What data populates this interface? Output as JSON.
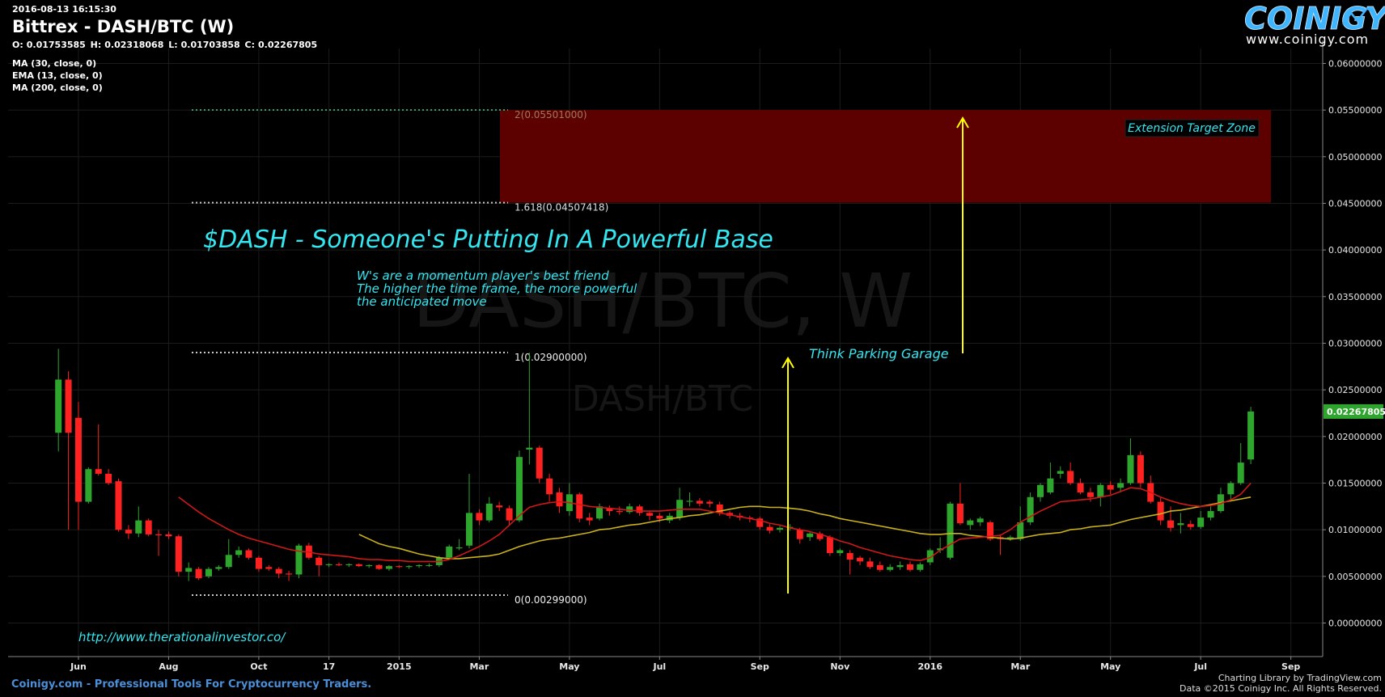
{
  "chart_data": {
    "type": "candlestick",
    "timestamp": "2016-08-13 16:15:30",
    "title": "Bittrex - DASH/BTC (W)",
    "ohlc_labels": [
      "O:",
      "H:",
      "L:",
      "C:"
    ],
    "watermark": "DASH/BTC, W",
    "watermark_sub": "DASH/BTC",
    "up_color": "#2ea62e",
    "down_color": "#ff2020",
    "grid": true,
    "ylim": [
      -0.0036,
      0.0616
    ],
    "yticks": [
      {
        "value": 0,
        "label": "0.00000000"
      },
      {
        "value": 0.005,
        "label": "0.00500000"
      },
      {
        "value": 0.01,
        "label": "0.01000000"
      },
      {
        "value": 0.015,
        "label": "0.01500000"
      },
      {
        "value": 0.02,
        "label": "0.02000000"
      },
      {
        "value": 0.025,
        "label": "0.02500000"
      },
      {
        "value": 0.03,
        "label": "0.03000000"
      },
      {
        "value": 0.035,
        "label": "0.03500000"
      },
      {
        "value": 0.04,
        "label": "0.04000000"
      },
      {
        "value": 0.045,
        "label": "0.04500000"
      },
      {
        "value": 0.05,
        "label": "0.05000000"
      },
      {
        "value": 0.055,
        "label": "0.05500000"
      },
      {
        "value": 0.06,
        "label": "0.06000000"
      }
    ],
    "categories": [
      null,
      null,
      "Jun",
      null,
      null,
      null,
      null,
      null,
      null,
      null,
      null,
      "Aug",
      null,
      null,
      null,
      null,
      null,
      null,
      null,
      null,
      "Oct",
      null,
      null,
      null,
      null,
      null,
      null,
      "17",
      null,
      null,
      null,
      null,
      null,
      null,
      "2015",
      null,
      null,
      null,
      null,
      null,
      null,
      null,
      "Mar",
      null,
      null,
      null,
      null,
      null,
      null,
      null,
      null,
      "May",
      null,
      null,
      null,
      null,
      null,
      null,
      null,
      null,
      "Jul",
      null,
      null,
      null,
      null,
      null,
      null,
      null,
      null,
      null,
      "Sep",
      null,
      null,
      null,
      null,
      null,
      null,
      null,
      "Nov",
      null,
      null,
      null,
      null,
      null,
      null,
      null,
      null,
      "2016",
      null,
      null,
      null,
      null,
      null,
      null,
      null,
      null,
      "Mar",
      null,
      null,
      null,
      null,
      null,
      null,
      null,
      null,
      "May",
      null,
      null,
      null,
      null,
      null,
      null,
      null,
      null,
      "Jul",
      null,
      null,
      null,
      null,
      null,
      null,
      null,
      null,
      "Sep",
      null,
      null,
      null
    ],
    "open": [
      0.0204,
      0.0261,
      0.022,
      0.013,
      0.0165,
      0.016,
      0.0152,
      0.01,
      0.0096,
      0.011,
      0.0095,
      0.0095,
      0.0093,
      0.0055,
      0.0058,
      0.005,
      0.0058,
      0.006,
      0.0073,
      0.0078,
      0.007,
      0.006,
      0.0058,
      0.0053,
      0.0052,
      0.0083,
      0.007,
      0.0062,
      0.0063,
      0.0062,
      0.0063,
      0.0061,
      0.0062,
      0.0058,
      0.0061,
      0.006,
      0.0061,
      0.0062,
      0.0062,
      0.007,
      0.008,
      0.0083,
      0.0118,
      0.011,
      0.0126,
      0.0123,
      0.011,
      0.0186,
      0.0188,
      0.0155,
      0.014,
      0.012,
      0.0138,
      0.0113,
      0.0112,
      0.0123,
      0.012,
      0.0119,
      0.0125,
      0.0118,
      0.0115,
      0.011,
      0.0113,
      0.013,
      0.0131,
      0.013,
      0.0127,
      0.0118,
      0.0115,
      0.0113,
      0.0112,
      0.0103,
      0.01,
      0.0102,
      0.01,
      0.0092,
      0.0096,
      0.0092,
      0.0075,
      0.0075,
      0.007,
      0.0066,
      0.0062,
      0.0057,
      0.006,
      0.0063,
      0.0057,
      0.0065,
      0.0078,
      0.007,
      0.0128,
      0.0105,
      0.0108,
      0.0108,
      0.0092,
      0.009,
      0.009,
      0.0108,
      0.0135,
      0.014,
      0.016,
      0.0163,
      0.015,
      0.014,
      0.0135,
      0.0148,
      0.0145,
      0.015,
      0.018,
      0.015,
      0.013,
      0.011,
      0.0105,
      0.0106,
      0.0103,
      0.0113,
      0.012,
      0.0138,
      0.015,
      0.01753585,
      null,
      null,
      null,
      null,
      null,
      null,
      null
    ],
    "high": [
      0.0294,
      0.027,
      0.0237,
      0.0167,
      0.0213,
      0.0165,
      0.0155,
      0.0105,
      0.0125,
      0.0112,
      0.01,
      0.0098,
      0.0095,
      0.0065,
      0.006,
      0.006,
      0.0062,
      0.009,
      0.0082,
      0.008,
      0.0072,
      0.0062,
      0.006,
      0.0056,
      0.0085,
      0.0086,
      0.0072,
      0.0064,
      0.0065,
      0.0064,
      0.0064,
      0.0063,
      0.0063,
      0.0062,
      0.0062,
      0.0062,
      0.0063,
      0.0064,
      0.0072,
      0.0084,
      0.009,
      0.016,
      0.0122,
      0.0135,
      0.013,
      0.0126,
      0.0185,
      0.029,
      0.019,
      0.016,
      0.0145,
      0.015,
      0.014,
      0.0118,
      0.0128,
      0.0126,
      0.0125,
      0.0128,
      0.0127,
      0.012,
      0.0118,
      0.0118,
      0.0145,
      0.014,
      0.0134,
      0.0132,
      0.013,
      0.012,
      0.0118,
      0.0115,
      0.0114,
      0.0106,
      0.0104,
      0.0106,
      0.0102,
      0.0098,
      0.0098,
      0.0094,
      0.008,
      0.0078,
      0.0072,
      0.007,
      0.0066,
      0.0063,
      0.0066,
      0.0066,
      0.0065,
      0.008,
      0.0092,
      0.013,
      0.015,
      0.0112,
      0.0114,
      0.011,
      0.0095,
      0.0094,
      0.0125,
      0.014,
      0.015,
      0.0172,
      0.0168,
      0.0172,
      0.0155,
      0.0145,
      0.015,
      0.0152,
      0.0155,
      0.0198,
      0.0184,
      0.0158,
      0.0135,
      0.0125,
      0.0118,
      0.011,
      0.012,
      0.0125,
      0.0145,
      0.0152,
      0.0193,
      0.02318068,
      null,
      null,
      null,
      null,
      null,
      null,
      null
    ],
    "low": [
      0.0184,
      0.01,
      0.01,
      0.0128,
      0.0158,
      0.0148,
      0.0098,
      0.009,
      0.0092,
      0.0093,
      0.0072,
      0.009,
      0.005,
      0.0045,
      0.0046,
      0.0048,
      0.0056,
      0.0058,
      0.007,
      0.0068,
      0.0055,
      0.0056,
      0.0048,
      0.0045,
      0.0048,
      0.0068,
      0.005,
      0.006,
      0.0061,
      0.006,
      0.006,
      0.0059,
      0.0057,
      0.0056,
      0.0059,
      0.0058,
      0.0059,
      0.006,
      0.006,
      0.0068,
      0.0078,
      0.008,
      0.0105,
      0.0108,
      0.012,
      0.0105,
      0.0108,
      0.017,
      0.015,
      0.013,
      0.0118,
      0.0115,
      0.0108,
      0.0105,
      0.011,
      0.0115,
      0.0116,
      0.0117,
      0.0115,
      0.011,
      0.0108,
      0.0107,
      0.011,
      0.0125,
      0.0125,
      0.0124,
      0.0115,
      0.0112,
      0.011,
      0.0108,
      0.01,
      0.0096,
      0.0097,
      0.0099,
      0.0085,
      0.0088,
      0.0088,
      0.0072,
      0.0072,
      0.0052,
      0.0062,
      0.0058,
      0.0055,
      0.0055,
      0.0057,
      0.0055,
      0.0055,
      0.0062,
      0.0075,
      0.0068,
      0.0105,
      0.01,
      0.0104,
      0.0088,
      0.0073,
      0.0088,
      0.0088,
      0.0105,
      0.013,
      0.0138,
      0.0155,
      0.0148,
      0.0138,
      0.013,
      0.0125,
      0.0138,
      0.014,
      0.0148,
      0.0145,
      0.0128,
      0.0105,
      0.0098,
      0.0096,
      0.01,
      0.0101,
      0.011,
      0.0118,
      0.013,
      0.0148,
      0.01703858,
      null,
      null,
      null,
      null,
      null,
      null,
      null
    ],
    "close": [
      0.0261,
      0.0204,
      0.013,
      0.0165,
      0.016,
      0.015,
      0.01,
      0.0096,
      0.011,
      0.0095,
      0.0094,
      0.0093,
      0.0055,
      0.0059,
      0.0048,
      0.0058,
      0.006,
      0.0073,
      0.0078,
      0.007,
      0.0058,
      0.0058,
      0.0053,
      0.0052,
      0.0083,
      0.007,
      0.0062,
      0.0063,
      0.0062,
      0.0063,
      0.0061,
      0.0062,
      0.0058,
      0.0061,
      0.006,
      0.0061,
      0.0062,
      0.0062,
      0.007,
      0.0082,
      0.0081,
      0.0118,
      0.011,
      0.0128,
      0.0124,
      0.011,
      0.0178,
      0.0188,
      0.0155,
      0.0138,
      0.0125,
      0.0138,
      0.0112,
      0.011,
      0.0125,
      0.012,
      0.0119,
      0.0125,
      0.0118,
      0.0115,
      0.0112,
      0.0115,
      0.0132,
      0.0131,
      0.0128,
      0.0128,
      0.0118,
      0.0115,
      0.0113,
      0.0112,
      0.0103,
      0.0099,
      0.0102,
      0.0103,
      0.009,
      0.0096,
      0.009,
      0.0075,
      0.0078,
      0.0068,
      0.0066,
      0.006,
      0.0057,
      0.006,
      0.0062,
      0.0057,
      0.0063,
      0.0078,
      0.008,
      0.0128,
      0.0107,
      0.011,
      0.0112,
      0.009,
      0.009,
      0.0092,
      0.0108,
      0.0135,
      0.0148,
      0.0155,
      0.0163,
      0.015,
      0.014,
      0.0135,
      0.0148,
      0.0143,
      0.015,
      0.018,
      0.015,
      0.013,
      0.011,
      0.0102,
      0.0107,
      0.0103,
      0.0113,
      0.012,
      0.0138,
      0.015,
      0.0172,
      0.02267805,
      null,
      null,
      null,
      null,
      null,
      null,
      null
    ],
    "series": [
      {
        "name": "MA (30, close, 0)",
        "color": "#c9b21a",
        "values": [
          null,
          null,
          null,
          null,
          null,
          null,
          null,
          null,
          null,
          null,
          null,
          null,
          null,
          null,
          null,
          null,
          null,
          null,
          null,
          null,
          null,
          null,
          null,
          null,
          null,
          null,
          null,
          null,
          null,
          null,
          0.0095,
          0.009,
          0.0085,
          0.0082,
          0.008,
          0.0077,
          0.0074,
          0.0072,
          0.007,
          0.0069,
          0.0069,
          0.007,
          0.0071,
          0.0072,
          0.0074,
          0.0078,
          0.0082,
          0.0085,
          0.0088,
          0.009,
          0.0091,
          0.0093,
          0.0095,
          0.0097,
          0.01,
          0.0101,
          0.0103,
          0.0105,
          0.0106,
          0.0108,
          0.011,
          0.0112,
          0.0113,
          0.0115,
          0.0116,
          0.0118,
          0.012,
          0.0122,
          0.0124,
          0.0125,
          0.0125,
          0.0124,
          0.0124,
          0.0123,
          0.0122,
          0.012,
          0.0117,
          0.0115,
          0.0112,
          0.011,
          0.0108,
          0.0106,
          0.0104,
          0.0102,
          0.01,
          0.0098,
          0.0096,
          0.0095,
          0.0095,
          0.0096,
          0.0096,
          0.0094,
          0.0093,
          0.0092,
          0.0091,
          0.009,
          0.0091,
          0.0093,
          0.0095,
          0.0096,
          0.0097,
          0.01,
          0.0101,
          0.0103,
          0.0104,
          0.0105,
          0.0108,
          0.0111,
          0.0113,
          0.0115,
          0.0117,
          0.012,
          0.0121,
          0.0123,
          0.0125,
          0.0127,
          0.0129,
          0.0131,
          0.0133,
          0.0135,
          null,
          null,
          null,
          null,
          null,
          null,
          null
        ]
      },
      {
        "name": "EMA (13, close, 0)",
        "color": "#d01818",
        "values": [
          null,
          null,
          null,
          null,
          null,
          null,
          null,
          null,
          null,
          null,
          null,
          null,
          0.0135,
          0.0127,
          0.0119,
          0.0112,
          0.0106,
          0.01,
          0.0095,
          0.0091,
          0.0088,
          0.0085,
          0.0082,
          0.0079,
          0.0077,
          0.0076,
          0.0074,
          0.0073,
          0.0072,
          0.0071,
          0.0069,
          0.0068,
          0.0068,
          0.0067,
          0.0067,
          0.0066,
          0.0066,
          0.0066,
          0.0066,
          0.0068,
          0.0072,
          0.0077,
          0.0082,
          0.0088,
          0.0095,
          0.0105,
          0.0115,
          0.0124,
          0.0127,
          0.0129,
          0.013,
          0.0129,
          0.0127,
          0.0125,
          0.0124,
          0.0123,
          0.0122,
          0.0121,
          0.012,
          0.012,
          0.012,
          0.0121,
          0.0122,
          0.0122,
          0.0122,
          0.012,
          0.0118,
          0.0116,
          0.0114,
          0.0112,
          0.011,
          0.0107,
          0.0105,
          0.0102,
          0.01,
          0.0098,
          0.0095,
          0.0092,
          0.0088,
          0.0085,
          0.0081,
          0.0078,
          0.0075,
          0.0072,
          0.007,
          0.0068,
          0.0067,
          0.007,
          0.0078,
          0.0084,
          0.009,
          0.0091,
          0.0092,
          0.0093,
          0.0094,
          0.01,
          0.0108,
          0.0114,
          0.012,
          0.0125,
          0.013,
          0.0131,
          0.0132,
          0.0133,
          0.0135,
          0.0137,
          0.0141,
          0.0145,
          0.0144,
          0.014,
          0.0135,
          0.0131,
          0.0128,
          0.0126,
          0.0125,
          0.0126,
          0.0128,
          0.0132,
          0.0138,
          0.015,
          null,
          null,
          null,
          null,
          null,
          null,
          null
        ]
      },
      {
        "name": "MA (200, close, 0)",
        "color": "#3a6fd0",
        "values": [
          null,
          null,
          null,
          null,
          null,
          null,
          null,
          null,
          null,
          null,
          null,
          null,
          null,
          null,
          null,
          null,
          null,
          null,
          null,
          null,
          null,
          null,
          null,
          null,
          null,
          null,
          null,
          null,
          null,
          null,
          null,
          null,
          null,
          null,
          null,
          null,
          null,
          null,
          null,
          null,
          null,
          null,
          null,
          null,
          null,
          null,
          null,
          null,
          null,
          null,
          null,
          null,
          null,
          null,
          null,
          null,
          null,
          null,
          null,
          null,
          null,
          null,
          null,
          null,
          null,
          null,
          null,
          null,
          null,
          null,
          null,
          null,
          null,
          null,
          null,
          null,
          null,
          null,
          null,
          null,
          null,
          null,
          null,
          null,
          null,
          null,
          null,
          null,
          null,
          null,
          null,
          null,
          null,
          null,
          null,
          null,
          null,
          null,
          null,
          null,
          null,
          null,
          null,
          null,
          null,
          null,
          null,
          null,
          null,
          null,
          null,
          null,
          null,
          null,
          null,
          null,
          null,
          null,
          null,
          null,
          null,
          null,
          null,
          null,
          null,
          null,
          null
        ]
      }
    ],
    "fib_levels": [
      {
        "value": 0.05501,
        "label": "2(0.05501000)",
        "color": "#3a9a6a",
        "label_color": "#9c7a5a"
      },
      {
        "value": 0.04507418,
        "label": "1.618(0.04507418)",
        "color": "#cccccc",
        "label_color": "#dddddd"
      },
      {
        "value": 0.029,
        "label": "1(0.02900000)",
        "color": "#cccccc",
        "label_color": "#eeeeee"
      },
      {
        "value": 0.00299,
        "label": "0(0.00299000)",
        "color": "#cccccc",
        "label_color": "#eeeeee"
      }
    ],
    "zone_color": "#5c0000",
    "zone_label": "Extension Target Zone",
    "headline": "$DASH - Someone's Putting In A Powerful Base",
    "note_lines": [
      "W's are a momentum player's best friend",
      "The higher the time frame, the more powerful",
      "the anticipated move"
    ],
    "garage_note": "Think Parking Garage",
    "source_url": "http://www.therationalinvestor.co/"
  },
  "branding": {
    "logo": "COINIGY",
    "site": "www.coinigy.com",
    "footer": "Coinigy.com - Professional Tools For Cryptocurrency Traders.",
    "credit": "Charting Library by TradingView.com",
    "copyright": "Data ©2015 Coinigy Inc. All Rights Reserved."
  }
}
